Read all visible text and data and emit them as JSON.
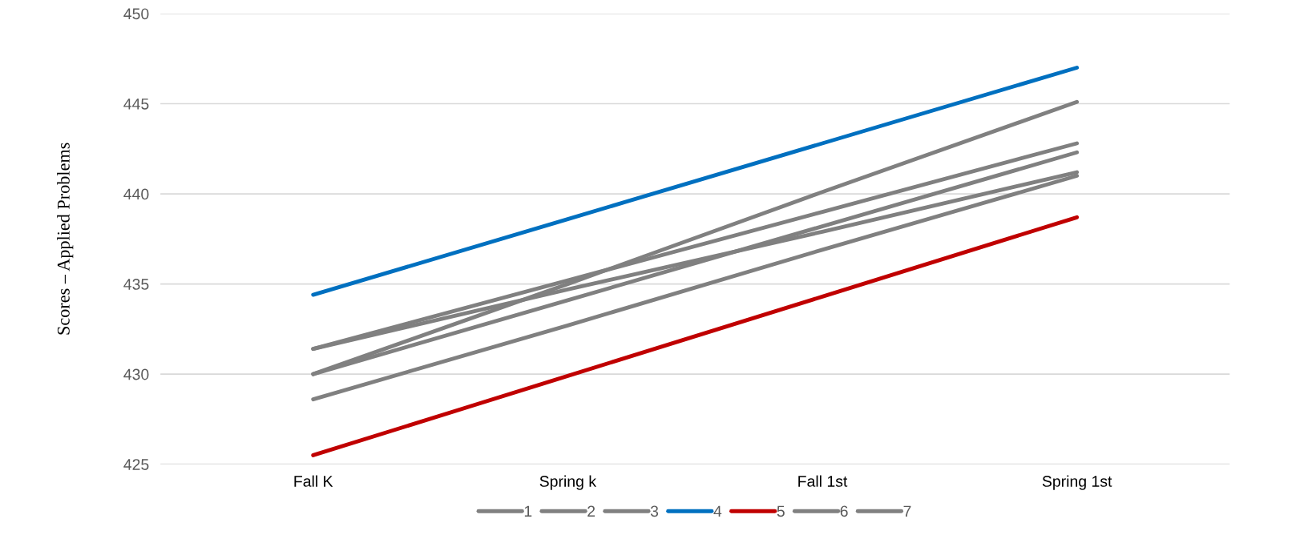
{
  "chart_data": {
    "type": "line",
    "ylabel": "Scores – Applied Problems",
    "categories": [
      "Fall K",
      "Spring k",
      "Fall 1st",
      "Spring 1st"
    ],
    "series": [
      {
        "name": "1",
        "color": "#808080",
        "values": [
          431.4,
          435.2,
          439.0,
          442.8
        ]
      },
      {
        "name": "2",
        "color": "#808080",
        "values": [
          430.0,
          435.0,
          440.1,
          445.1
        ]
      },
      {
        "name": "3",
        "color": "#808080",
        "values": [
          430.0,
          434.1,
          438.2,
          442.3
        ]
      },
      {
        "name": "4",
        "color": "#0070c0",
        "values": [
          434.4,
          438.6,
          442.8,
          447.0
        ]
      },
      {
        "name": "5",
        "color": "#c00000",
        "values": [
          425.5,
          429.9,
          434.3,
          438.7
        ]
      },
      {
        "name": "6",
        "color": "#808080",
        "values": [
          431.4,
          434.7,
          437.9,
          441.2
        ]
      },
      {
        "name": "7",
        "color": "#808080",
        "values": [
          428.6,
          432.7,
          436.9,
          441.0
        ]
      }
    ],
    "ylim": [
      425,
      450
    ],
    "yticks": [
      425,
      430,
      435,
      440,
      445,
      450
    ],
    "grid": "y",
    "legend": "bottom",
    "marker": "none",
    "line_style": "solid"
  }
}
